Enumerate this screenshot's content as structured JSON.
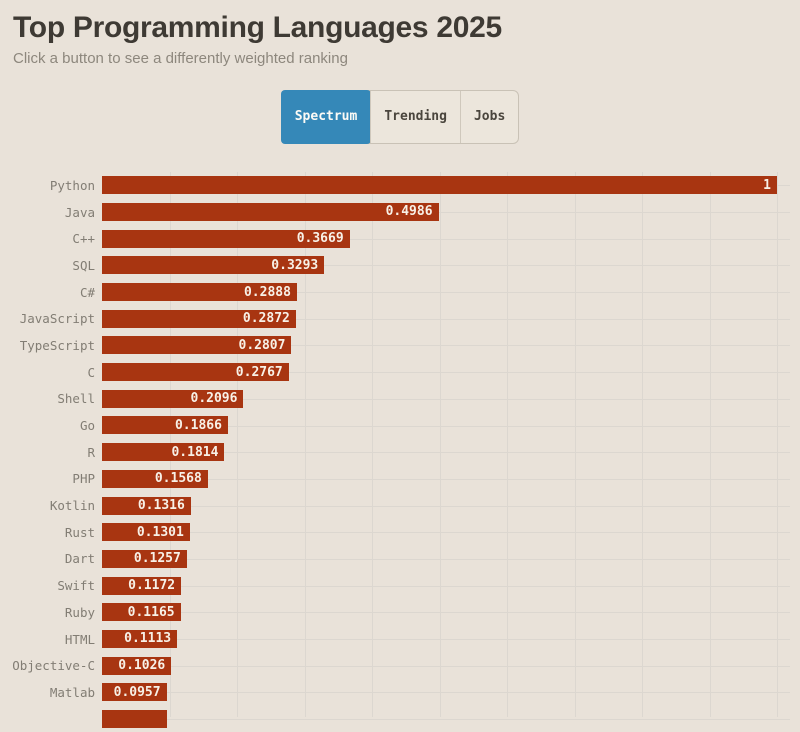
{
  "page": {
    "background": "#e9e2d9"
  },
  "header": {
    "title": "Top Programming Languages 2025",
    "subtitle": "Click a button to see a differently weighted ranking"
  },
  "tabs": {
    "items": [
      {
        "label": "Spectrum",
        "active": true
      },
      {
        "label": "Trending",
        "active": false
      },
      {
        "label": "Jobs",
        "active": false
      }
    ],
    "active_color": "#3588b8"
  },
  "chart_data": {
    "type": "bar",
    "orientation": "horizontal",
    "categories": [
      "Python",
      "Java",
      "C++",
      "SQL",
      "C#",
      "JavaScript",
      "TypeScript",
      "C",
      "Shell",
      "Go",
      "R",
      "PHP",
      "Kotlin",
      "Rust",
      "Dart",
      "Swift",
      "Ruby",
      "HTML",
      "Objective-C",
      "Matlab"
    ],
    "values": [
      "1",
      "0.4986",
      "0.3669",
      "0.3293",
      "0.2888",
      "0.2872",
      "0.2807",
      "0.2767",
      "0.2096",
      "0.1866",
      "0.1814",
      "0.1568",
      "0.1316",
      "0.1301",
      "0.1257",
      "0.1172",
      "0.1165",
      "0.1113",
      "0.1026",
      "0.0957"
    ],
    "partial_bar": {
      "visible": true,
      "approx_fraction": 0.097
    },
    "xlim": [
      0,
      1
    ],
    "grid_interval_x": 0.1,
    "grid_on": true,
    "bar_color": "#a83511",
    "value_label_color": "#f8f1e7",
    "title": "Top Programming Languages 2025",
    "xlabel": "",
    "ylabel": ""
  }
}
